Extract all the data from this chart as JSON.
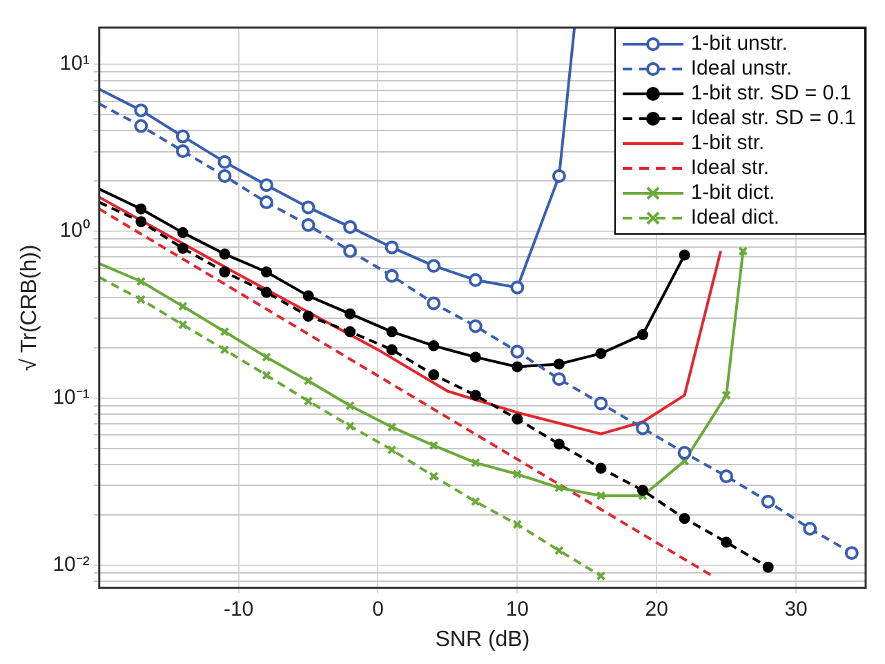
{
  "chart_data": {
    "type": "line",
    "xlabel": "SNR (dB)",
    "ylabel": "√ Tr(CRB(h))",
    "log": "y",
    "grid": true,
    "legend": "top right",
    "xlim": [
      -20,
      35
    ],
    "xticks": [
      -10,
      0,
      10,
      20,
      30
    ],
    "ylim": [
      0.0073,
      16.6
    ],
    "yticks": [
      {
        "value": 0.008,
        "label": null
      },
      {
        "value": 0.009,
        "label": null
      },
      {
        "value": 0.01,
        "label": "10⁻²"
      },
      {
        "value": 0.02,
        "label": null
      },
      {
        "value": 0.03,
        "label": null
      },
      {
        "value": 0.04,
        "label": null
      },
      {
        "value": 0.05,
        "label": null
      },
      {
        "value": 0.06,
        "label": null
      },
      {
        "value": 0.07,
        "label": null
      },
      {
        "value": 0.08,
        "label": null
      },
      {
        "value": 0.09,
        "label": null
      },
      {
        "value": 0.1,
        "label": "10⁻¹"
      },
      {
        "value": 0.2,
        "label": null
      },
      {
        "value": 0.3,
        "label": null
      },
      {
        "value": 0.4,
        "label": null
      },
      {
        "value": 0.5,
        "label": null
      },
      {
        "value": 0.6,
        "label": null
      },
      {
        "value": 0.7,
        "label": null
      },
      {
        "value": 0.8,
        "label": null
      },
      {
        "value": 0.9,
        "label": null
      },
      {
        "value": 1,
        "label": "10⁰"
      },
      {
        "value": 2,
        "label": null
      },
      {
        "value": 3,
        "label": null
      },
      {
        "value": 4,
        "label": null
      },
      {
        "value": 5,
        "label": null
      },
      {
        "value": 6,
        "label": null
      },
      {
        "value": 7,
        "label": null
      },
      {
        "value": 8,
        "label": null
      },
      {
        "value": 9,
        "label": null
      },
      {
        "value": 10,
        "label": "10¹"
      }
    ],
    "series": [
      {
        "name": "1-bit unstr.",
        "color": "#3a5fb0",
        "line_style": "solid",
        "marker": "circle",
        "x": [
          -20,
          -17,
          -14,
          -11,
          -8,
          -5,
          -2,
          1,
          4,
          7,
          10,
          13,
          14.1
        ],
        "values": [
          7.1,
          5.3,
          3.7,
          2.6,
          1.89,
          1.39,
          1.06,
          0.8,
          0.62,
          0.51,
          0.46,
          2.14,
          16.6
        ]
      },
      {
        "name": "Ideal unstr.",
        "color": "#3a5fb0",
        "line_style": "dashed",
        "marker": "circle",
        "x": [
          -20,
          -17,
          -14,
          -11,
          -8,
          -5,
          -2,
          1,
          4,
          7,
          10,
          13,
          16,
          19,
          22,
          25,
          28,
          31,
          34
        ],
        "values": [
          5.8,
          4.27,
          3.02,
          2.14,
          1.49,
          1.09,
          0.76,
          0.54,
          0.37,
          0.27,
          0.19,
          0.13,
          0.093,
          0.066,
          0.047,
          0.034,
          0.024,
          0.0165,
          0.0118
        ]
      },
      {
        "name": "1-bit str. SD = 0.1",
        "color": "#000000",
        "line_style": "solid",
        "marker": "circle",
        "x": [
          -20,
          -17,
          -14,
          -11,
          -8,
          -5,
          -2,
          1,
          4,
          7,
          10,
          13,
          16,
          19,
          22
        ],
        "values": [
          1.79,
          1.36,
          0.98,
          0.73,
          0.57,
          0.41,
          0.32,
          0.25,
          0.206,
          0.176,
          0.154,
          0.16,
          0.185,
          0.24,
          0.72
        ]
      },
      {
        "name": "Ideal str. SD = 0.1",
        "color": "#000000",
        "line_style": "dashed",
        "marker": "circle",
        "x": [
          -20,
          -17,
          -14,
          -11,
          -8,
          -5,
          -2,
          1,
          4,
          7,
          10,
          13,
          16,
          19,
          22,
          25,
          28
        ],
        "values": [
          1.49,
          1.14,
          0.79,
          0.57,
          0.43,
          0.31,
          0.25,
          0.195,
          0.138,
          0.104,
          0.075,
          0.053,
          0.038,
          0.028,
          0.019,
          0.0137,
          0.0097
        ]
      },
      {
        "name": "1-bit str.",
        "color": "#e0282e",
        "line_style": "solid",
        "marker": "none",
        "x": [
          -20,
          -10,
          0,
          5,
          10,
          16,
          19,
          22,
          24.6
        ],
        "values": [
          1.6,
          0.55,
          0.195,
          0.11,
          0.082,
          0.061,
          0.072,
          0.104,
          0.76
        ]
      },
      {
        "name": "Ideal str.",
        "color": "#e0282e",
        "line_style": "dashed",
        "marker": "none",
        "x": [
          -20,
          -10,
          0,
          10,
          20,
          24
        ],
        "values": [
          1.36,
          0.43,
          0.136,
          0.043,
          0.0136,
          0.0086
        ]
      },
      {
        "name": "1-bit dict.",
        "color": "#6aaa3a",
        "line_style": "solid",
        "marker": "cross",
        "x": [
          -20,
          -17,
          -14,
          -11,
          -8,
          -5,
          -2,
          1,
          4,
          7,
          10,
          13,
          16,
          19,
          22,
          25,
          26.2
        ],
        "values": [
          0.64,
          0.5,
          0.355,
          0.25,
          0.176,
          0.127,
          0.09,
          0.067,
          0.052,
          0.041,
          0.035,
          0.029,
          0.026,
          0.026,
          0.042,
          0.104,
          0.76
        ]
      },
      {
        "name": "Ideal dict.",
        "color": "#6aaa3a",
        "line_style": "dashed",
        "marker": "cross",
        "x": [
          -20,
          -17,
          -14,
          -11,
          -8,
          -5,
          -2,
          1,
          4,
          7,
          10,
          13,
          16
        ],
        "values": [
          0.53,
          0.39,
          0.275,
          0.195,
          0.137,
          0.096,
          0.068,
          0.049,
          0.034,
          0.024,
          0.0175,
          0.0122,
          0.0086
        ]
      }
    ]
  }
}
